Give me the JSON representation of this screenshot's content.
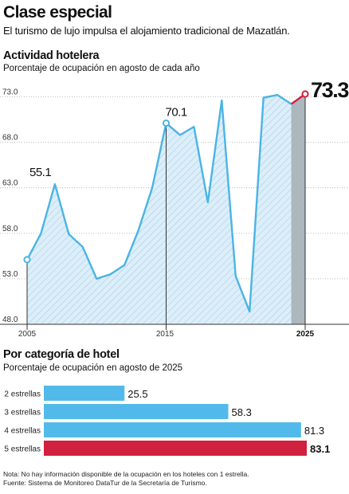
{
  "title": "Clase especial",
  "subtitle": "El turismo de lujo impulsa el alojamiento tradicional de Mazatlán.",
  "colors": {
    "line": "#4ab4e6",
    "fill": "#dceef9",
    "bar": "#52baea",
    "highlight": "#d0213f",
    "shade": "#a7b0b7"
  },
  "line_section": {
    "title": "Actividad hotelera",
    "subtitle": "Porcentaje de ocupación en agosto de cada año"
  },
  "bar_section": {
    "title": "Por categoría de hotel",
    "subtitle": "Porcentaje de ocupación en agosto de 2025"
  },
  "notes": {
    "note": "Nota: No hay información disponible de la ocupación en los hoteles con 1 estrella.",
    "source": "Fuente: Sistema de Monitoreo DataTur de la Secretaría de Turismo."
  },
  "chart_data": [
    {
      "type": "line",
      "x": [
        2005,
        2006,
        2007,
        2008,
        2009,
        2010,
        2011,
        2012,
        2013,
        2014,
        2015,
        2016,
        2017,
        2018,
        2019,
        2020,
        2021,
        2022,
        2023,
        2024,
        2025
      ],
      "values": [
        55.1,
        58.0,
        63.4,
        57.9,
        56.5,
        53.0,
        53.5,
        54.5,
        58.3,
        63.0,
        70.1,
        68.8,
        69.7,
        61.4,
        72.6,
        53.3,
        49.4,
        72.9,
        73.2,
        72.2,
        73.3
      ],
      "labels": {
        "0": "55.1",
        "10": "70.1",
        "20": "73.3"
      },
      "yticks": [
        "48.0",
        "53.0",
        "58.0",
        "63.0",
        "68.0",
        "73.0"
      ],
      "ytick_values": [
        48,
        53,
        58,
        63,
        68,
        73
      ],
      "xticks": [
        "2005",
        "2015",
        "2025"
      ],
      "ylim": [
        48,
        73.3
      ],
      "highlight_last": true
    },
    {
      "type": "bar",
      "categories": [
        "2 estrellas",
        "3 estrellas",
        "4 estrellas",
        "5 estrellas"
      ],
      "values": [
        25.5,
        58.3,
        81.3,
        83.1
      ],
      "labels": [
        "25.5",
        "58.3",
        "81.3",
        "83.1"
      ],
      "highlight": "5 estrellas"
    }
  ]
}
